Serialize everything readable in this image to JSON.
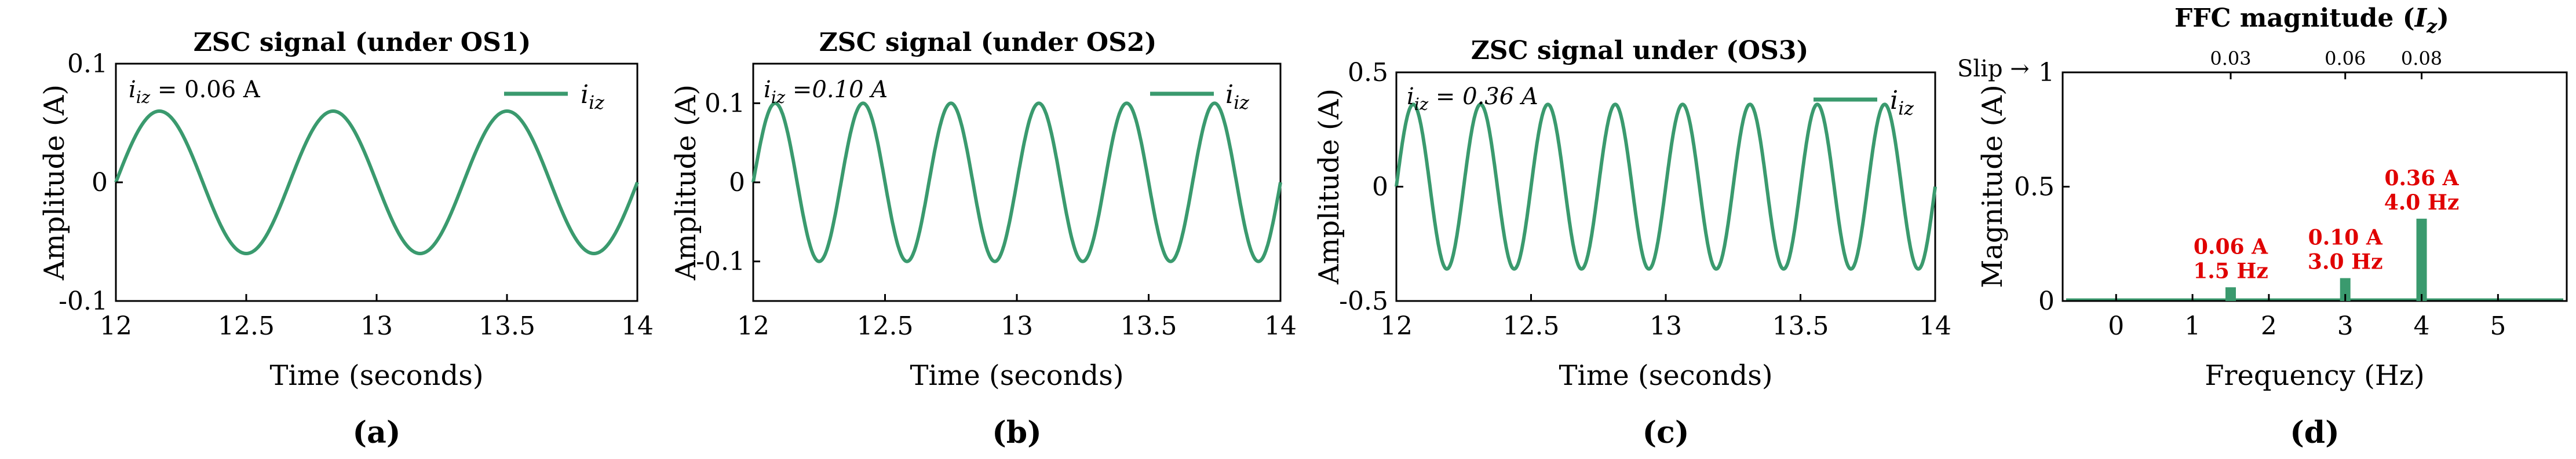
{
  "chart_data": [
    {
      "type": "line",
      "panel_label": "(a)",
      "title": "ZSC signal (under OS1)",
      "xlabel": "Time (seconds)",
      "ylabel": "Amplitude (A)",
      "xlim": [
        12,
        14
      ],
      "ylim": [
        -0.1,
        0.1
      ],
      "xticks": [
        "12",
        "12.5",
        "13",
        "13.5",
        "14"
      ],
      "yticks": [
        "0.1",
        "0",
        "-0.1"
      ],
      "legend": "i_iz",
      "legend_position": "top-right",
      "annotation": "i_iz = 0.06 A",
      "series": [
        {
          "name": "i_iz",
          "amplitude": 0.06,
          "frequency_hz": 1.5
        }
      ],
      "color": "#3a9a6e"
    },
    {
      "type": "line",
      "panel_label": "(b)",
      "title": "ZSC signal (under OS2)",
      "xlabel": "Time (seconds)",
      "ylabel": "Amplitude (A)",
      "xlim": [
        12,
        14
      ],
      "ylim": [
        -0.15,
        0.15
      ],
      "xticks": [
        "12",
        "12.5",
        "13",
        "13.5",
        "14"
      ],
      "yticks": [
        "0.1",
        "0",
        "-0.1"
      ],
      "legend": "i_iz",
      "legend_position": "top-right",
      "annotation": "i_iz =0.10 A",
      "series": [
        {
          "name": "i_iz",
          "amplitude": 0.1,
          "frequency_hz": 3.0
        }
      ],
      "color": "#3a9a6e"
    },
    {
      "type": "line",
      "panel_label": "(c)",
      "title": "ZSC signal under (OS3)",
      "xlabel": "Time (seconds)",
      "ylabel": "Amplitude (A)",
      "xlim": [
        12,
        14
      ],
      "ylim": [
        -0.5,
        0.5
      ],
      "xticks": [
        "12",
        "12.5",
        "13",
        "13.5",
        "14"
      ],
      "yticks": [
        "0.5",
        "0",
        "-0.5"
      ],
      "legend": "i_iz",
      "legend_position": "top-right",
      "annotation": "i_iz = 0.36 A",
      "series": [
        {
          "name": "i_iz",
          "amplitude": 0.36,
          "frequency_hz": 4.0
        }
      ],
      "color": "#3a9a6e"
    },
    {
      "type": "bar",
      "panel_label": "(d)",
      "title": "FFC magnitude (I_z)",
      "xlabel": "Frequency (Hz)",
      "ylabel": "Magnitude (A)",
      "xlim": [
        -0.7,
        5.9
      ],
      "ylim": [
        0,
        1
      ],
      "xticks": [
        "0",
        "1",
        "2",
        "3",
        "4",
        "5"
      ],
      "yticks": [
        "1",
        "0.5",
        "0"
      ],
      "x": [
        1.5,
        3.0,
        4.0
      ],
      "values": [
        0.06,
        0.1,
        0.36
      ],
      "bar_labels": [
        [
          "0.06 A",
          "1.5 Hz"
        ],
        [
          "0.10 A",
          "3.0 Hz"
        ],
        [
          "0.36 A",
          "4.0 Hz"
        ]
      ],
      "secondary_axis": {
        "label": "Slip",
        "ticks": [
          "0.03",
          "0.06",
          "0.08"
        ]
      },
      "color": "#3a9a6e",
      "annotation_color": "#e00000"
    }
  ]
}
